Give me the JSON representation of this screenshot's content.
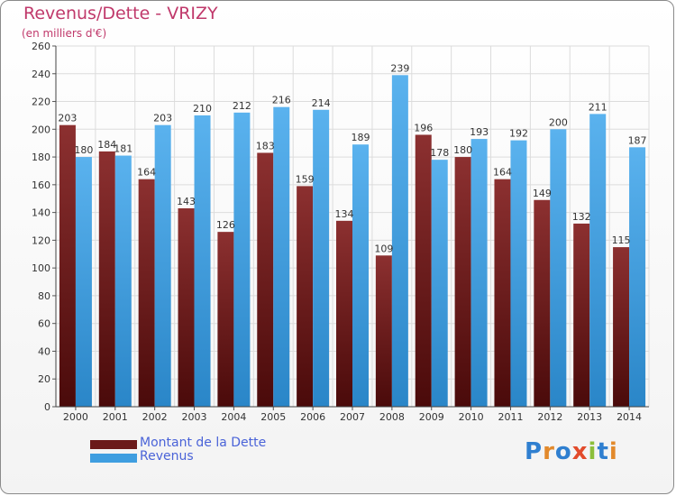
{
  "title": "Revenus/Dette - VRIZY",
  "subtitle": "(en milliers d'€)",
  "legend": [
    {
      "label": "Montant de la Dette",
      "color": "#6b1a1a"
    },
    {
      "label": "Revenus",
      "color": "#3f9ee0"
    }
  ],
  "logo": {
    "text": "Proxiti",
    "letters": [
      {
        "ch": "P",
        "color": "#2f7fd0"
      },
      {
        "ch": "r",
        "color": "#e2892b"
      },
      {
        "ch": "o",
        "color": "#2f7fd0"
      },
      {
        "ch": "x",
        "color": "#e24b2b"
      },
      {
        "ch": "i",
        "color": "#8cbf3b"
      },
      {
        "ch": "t",
        "color": "#2f7fd0"
      },
      {
        "ch": "i",
        "color": "#e2892b"
      }
    ]
  },
  "chart_data": {
    "type": "bar",
    "categories": [
      "2000",
      "2001",
      "2002",
      "2003",
      "2004",
      "2005",
      "2006",
      "2007",
      "2008",
      "2009",
      "2010",
      "2011",
      "2012",
      "2013",
      "2014"
    ],
    "series": [
      {
        "name": "Montant de la Dette",
        "values": [
          203,
          184,
          164,
          143,
          126,
          183,
          159,
          134,
          109,
          196,
          180,
          164,
          149,
          132,
          115
        ],
        "color": "#6b1a1a"
      },
      {
        "name": "Revenus",
        "values": [
          180,
          181,
          203,
          210,
          212,
          216,
          214,
          189,
          239,
          178,
          193,
          192,
          200,
          211,
          187
        ],
        "color": "#3f9ee0"
      }
    ],
    "ylim": [
      0,
      260
    ],
    "yticks": [
      0,
      20,
      40,
      60,
      80,
      100,
      120,
      140,
      160,
      180,
      200,
      220,
      240,
      260
    ],
    "grid": true,
    "legend_position": "bottom-left"
  }
}
